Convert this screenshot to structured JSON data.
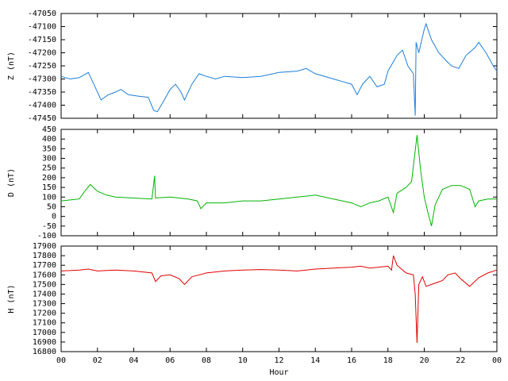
{
  "chart_data": [
    {
      "type": "line",
      "ylabel": "Z (nT)",
      "xlim": [
        0,
        24
      ],
      "xticks": [
        0,
        2,
        4,
        6,
        8,
        10,
        12,
        14,
        16,
        18,
        20,
        22,
        24
      ],
      "ylim": [
        -47450,
        -47050
      ],
      "yticks": [
        -47050,
        -47100,
        -47150,
        -47200,
        -47250,
        -47300,
        -47350,
        -47400,
        -47450
      ],
      "series": [
        {
          "color": "#1c7fd8",
          "x": [
            0,
            0.5,
            1,
            1.5,
            1.8,
            2.2,
            2.6,
            3,
            3.3,
            3.7,
            4.2,
            4.8,
            5.1,
            5.3,
            5.6,
            6,
            6.3,
            6.6,
            6.8,
            7.2,
            7.6,
            8,
            8.5,
            9,
            10,
            11,
            12,
            13,
            13.5,
            14,
            15,
            15.5,
            16,
            16.3,
            16.6,
            17,
            17.4,
            17.8,
            18,
            18.5,
            18.8,
            19.1,
            19.4,
            19.5,
            19.55,
            19.7,
            20,
            20.1,
            20.4,
            20.8,
            21.2,
            21.5,
            21.9,
            22.3,
            22.8,
            23,
            23.4,
            23.8,
            24
          ],
          "values": [
            -47290,
            -47300,
            -47295,
            -47275,
            -47320,
            -47380,
            -47360,
            -47350,
            -47340,
            -47360,
            -47365,
            -47370,
            -47420,
            -47425,
            -47390,
            -47340,
            -47320,
            -47350,
            -47380,
            -47320,
            -47280,
            -47290,
            -47300,
            -47290,
            -47295,
            -47290,
            -47275,
            -47270,
            -47260,
            -47280,
            -47300,
            -47310,
            -47320,
            -47360,
            -47320,
            -47290,
            -47330,
            -47320,
            -47270,
            -47210,
            -47190,
            -47250,
            -47280,
            -47440,
            -47160,
            -47200,
            -47110,
            -47090,
            -47150,
            -47200,
            -47230,
            -47250,
            -47260,
            -47210,
            -47180,
            -47160,
            -47200,
            -47250,
            -47270
          ]
        }
      ]
    },
    {
      "type": "line",
      "ylabel": "D (nT)",
      "xlim": [
        0,
        24
      ],
      "xticks": [
        0,
        2,
        4,
        6,
        8,
        10,
        12,
        14,
        16,
        18,
        20,
        22,
        24
      ],
      "ylim": [
        -100,
        450
      ],
      "yticks": [
        450,
        400,
        350,
        300,
        250,
        200,
        150,
        100,
        50,
        0,
        -50,
        -100
      ],
      "series": [
        {
          "color": "#00b400",
          "x": [
            0,
            0.5,
            1,
            1.3,
            1.6,
            2,
            2.5,
            3,
            4,
            5,
            5.15,
            5.2,
            6,
            7,
            7.5,
            7.7,
            8,
            9,
            10,
            11,
            12,
            13,
            14,
            15,
            16,
            16.5,
            17,
            17.5,
            18,
            18.3,
            18.5,
            19,
            19.3,
            19.6,
            19.8,
            20,
            20.2,
            20.4,
            20.6,
            21,
            21.5,
            22,
            22.5,
            22.8,
            23,
            23.5,
            24
          ],
          "values": [
            80,
            85,
            90,
            130,
            165,
            130,
            110,
            100,
            95,
            90,
            210,
            95,
            100,
            90,
            80,
            40,
            70,
            70,
            80,
            80,
            90,
            100,
            110,
            90,
            70,
            50,
            70,
            80,
            100,
            20,
            120,
            150,
            180,
            420,
            240,
            100,
            20,
            -50,
            60,
            140,
            160,
            160,
            140,
            50,
            80,
            90,
            90
          ]
        }
      ]
    },
    {
      "type": "line",
      "ylabel": "H (nT)",
      "xlabel": "Hour",
      "xlim": [
        0,
        24
      ],
      "xticks": [
        {
          "value": 0,
          "label": "00"
        },
        {
          "value": 2,
          "label": "02"
        },
        {
          "value": 4,
          "label": "04"
        },
        {
          "value": 6,
          "label": "06"
        },
        {
          "value": 8,
          "label": "08"
        },
        10,
        12,
        14,
        16,
        18,
        20,
        22,
        {
          "value": 24,
          "label": "00"
        }
      ],
      "ylim": [
        16800,
        17900
      ],
      "yticks": [
        17900,
        17800,
        17700,
        17600,
        17500,
        17400,
        17300,
        17200,
        17100,
        17000,
        16900,
        16800
      ],
      "series": [
        {
          "color": "#e00000",
          "x": [
            0,
            1,
            1.5,
            2,
            3,
            4,
            5,
            5.2,
            5.5,
            6,
            6.5,
            6.8,
            7.2,
            8,
            9,
            10,
            11,
            12,
            13,
            14,
            15,
            16,
            16.5,
            17,
            18,
            18.2,
            18.3,
            18.5,
            19,
            19.4,
            19.5,
            19.6,
            19.7,
            19.9,
            20.1,
            20.4,
            20.7,
            21,
            21.3,
            21.7,
            22,
            22.5,
            23,
            23.5,
            24
          ],
          "values": [
            17640,
            17650,
            17660,
            17640,
            17650,
            17640,
            17620,
            17530,
            17590,
            17600,
            17560,
            17500,
            17580,
            17620,
            17640,
            17650,
            17655,
            17650,
            17640,
            17660,
            17670,
            17680,
            17690,
            17670,
            17690,
            17650,
            17800,
            17700,
            17620,
            17600,
            17400,
            16890,
            17500,
            17580,
            17480,
            17500,
            17520,
            17540,
            17600,
            17620,
            17560,
            17480,
            17570,
            17620,
            17650
          ]
        }
      ]
    }
  ]
}
